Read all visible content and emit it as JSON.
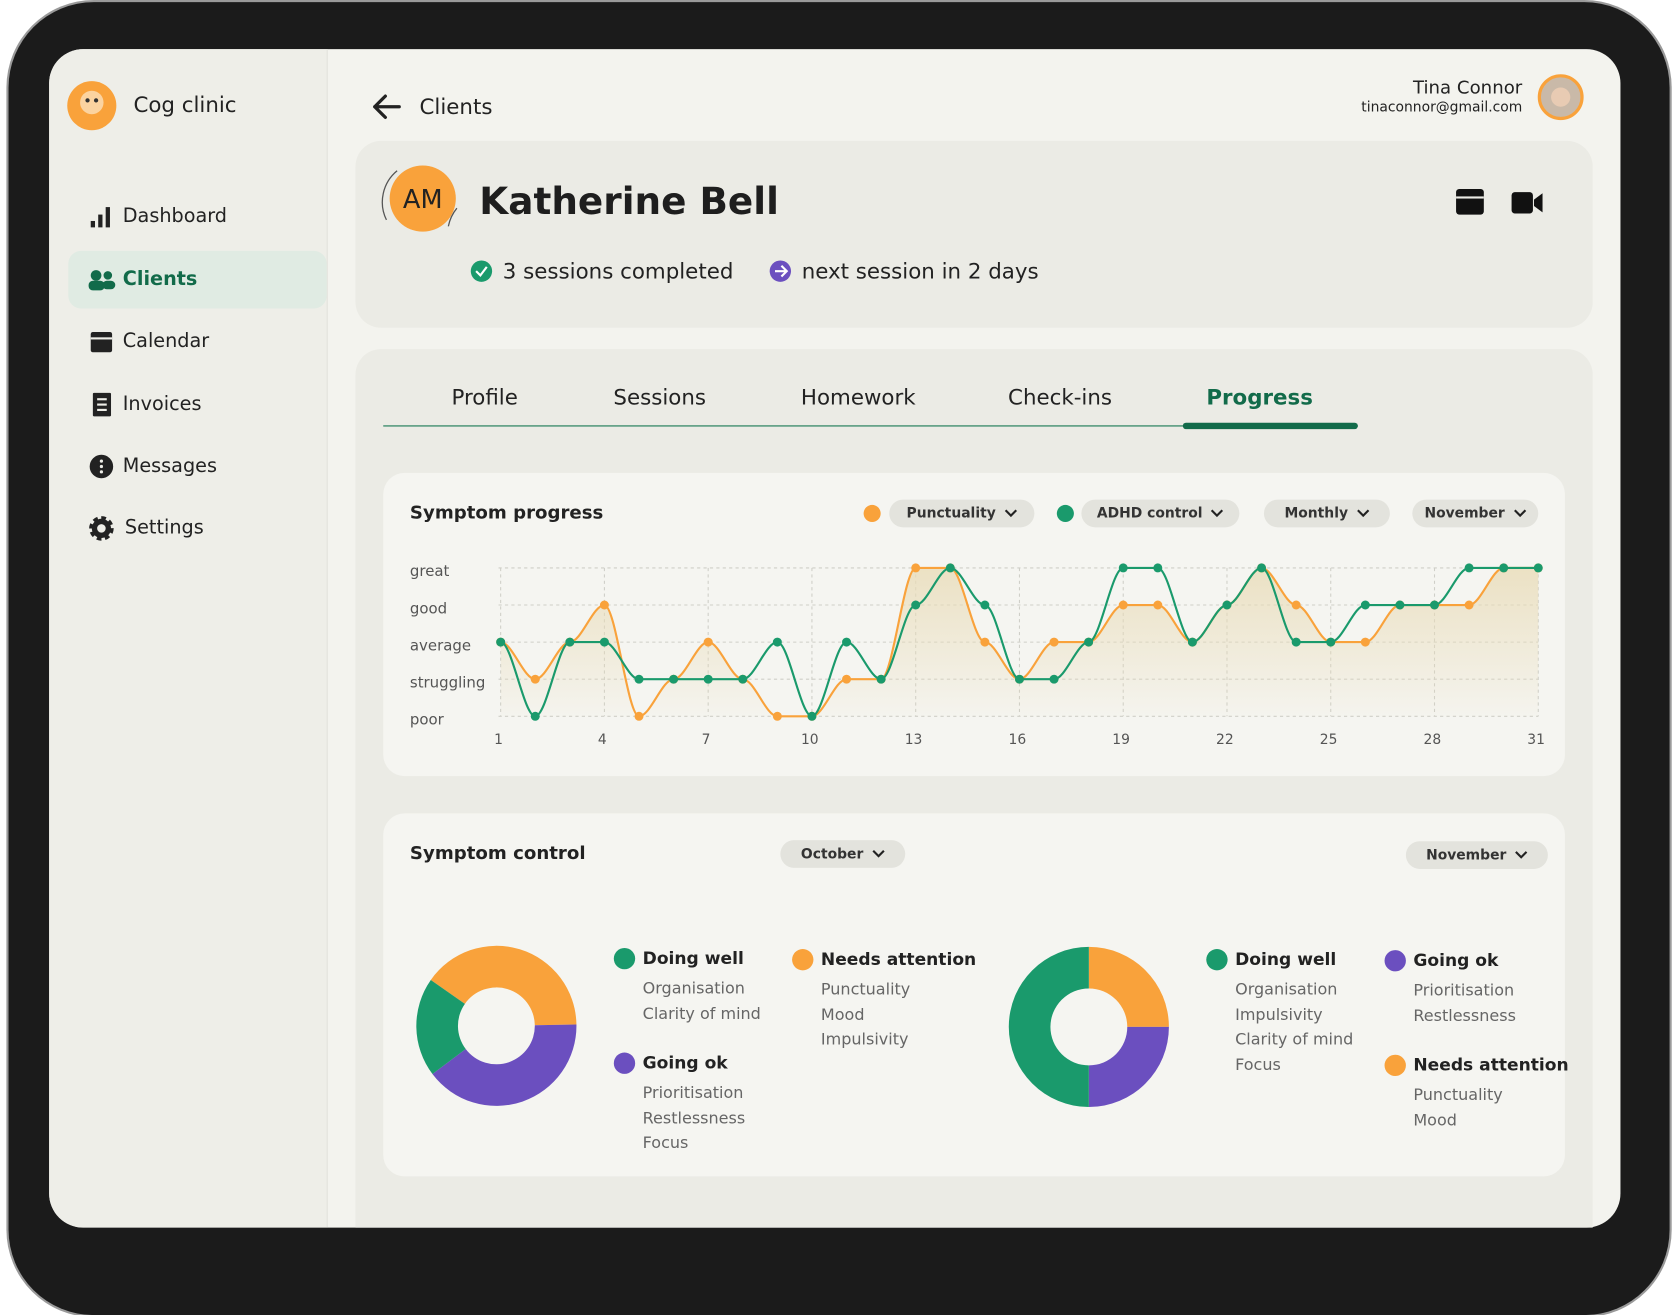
{
  "sidebar": {
    "brand": "Cog clinic",
    "nav": [
      "Dashboard",
      "Clients",
      "Calendar",
      "Invoices",
      "Messages",
      "Settings"
    ],
    "active": 1
  },
  "header": {
    "back": "Clients",
    "user_name": "Tina Connor",
    "user_email": "tinaconnor@gmail.com"
  },
  "client": {
    "initials": "AM",
    "name": "Katherine Bell",
    "sessions": "3 sessions completed",
    "next": "next session in 2 days"
  },
  "tabs": {
    "items": [
      "Profile",
      "Sessions",
      "Homework",
      "Check-ins",
      "Progress"
    ],
    "active": 4
  },
  "symptom_control": {
    "title": "Symptom control"
  },
  "chart_data": [
    {
      "type": "line",
      "title": "Symptom progress",
      "filters": [
        "Monthly",
        "November"
      ],
      "x": [
        1,
        2,
        3,
        4,
        5,
        6,
        7,
        8,
        9,
        10,
        11,
        12,
        13,
        14,
        15,
        16,
        17,
        18,
        19,
        20,
        21,
        22,
        23,
        24,
        25,
        26,
        27,
        28,
        29,
        30,
        31
      ],
      "xlim": [
        1,
        31
      ],
      "xticks": [
        1,
        4,
        7,
        10,
        13,
        16,
        19,
        22,
        25,
        28,
        31
      ],
      "ylim": [
        1,
        5
      ],
      "yticks": [
        {
          "value": 5,
          "label": "great"
        },
        {
          "value": 4,
          "label": "good"
        },
        {
          "value": 3,
          "label": "average"
        },
        {
          "value": 2,
          "label": "struggling"
        },
        {
          "value": 1,
          "label": "poor"
        }
      ],
      "grid": true,
      "series": [
        {
          "name": "Punctuality",
          "color": "#f9a23b",
          "values": [
            3,
            2,
            3,
            4,
            1,
            2,
            3,
            2,
            1,
            1,
            2,
            2,
            5,
            5,
            3,
            2,
            3,
            3,
            4,
            4,
            3,
            4,
            5,
            4,
            3,
            3,
            4,
            4,
            4,
            5,
            5
          ]
        },
        {
          "name": "ADHD control",
          "color": "#1a9a6c",
          "values": [
            3,
            1,
            3,
            3,
            2,
            2,
            2,
            2,
            3,
            1,
            3,
            2,
            4,
            5,
            4,
            2,
            2,
            3,
            5,
            5,
            3,
            4,
            5,
            3,
            3,
            4,
            4,
            4,
            5,
            5,
            5
          ]
        }
      ]
    },
    {
      "type": "pie",
      "period": "October",
      "categories": [
        "Doing well",
        "Going ok",
        "Needs attention"
      ],
      "colors": [
        "#1a9a6c",
        "#6b4fbf",
        "#f9a23b"
      ],
      "values": [
        20,
        40,
        40
      ],
      "details": [
        [
          "Organisation",
          "Clarity of mind"
        ],
        [
          "Prioritisation",
          "Restlessness",
          "Focus"
        ],
        [
          "Punctuality",
          "Mood",
          "Impulsivity"
        ]
      ]
    },
    {
      "type": "pie",
      "period": "November",
      "categories": [
        "Doing well",
        "Going ok",
        "Needs attention"
      ],
      "colors": [
        "#1a9a6c",
        "#6b4fbf",
        "#f9a23b"
      ],
      "values": [
        50,
        25,
        25
      ],
      "details": [
        [
          "Organisation",
          "Impulsivity",
          "Clarity of mind",
          "Focus"
        ],
        [
          "Prioritisation",
          "Restlessness"
        ],
        [
          "Punctuality",
          "Mood"
        ]
      ]
    }
  ]
}
